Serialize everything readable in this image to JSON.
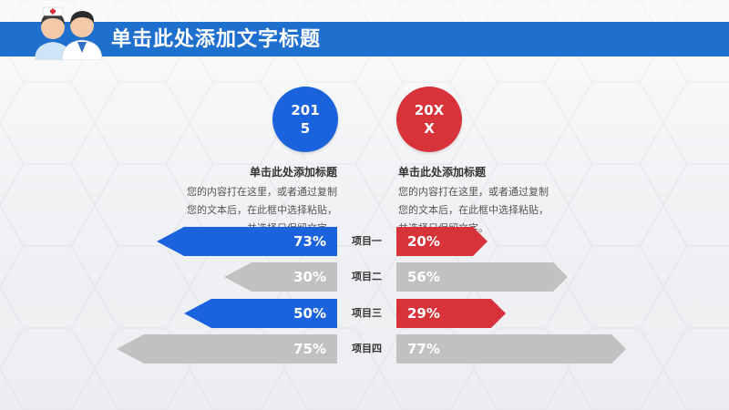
{
  "header": {
    "title": "单击此处添加文字标题"
  },
  "years": {
    "left": "2015",
    "right": "20XX"
  },
  "left_block": {
    "title": "单击此处添加标题",
    "body": "您的内容打在这里，或者通过复制您的文本后，在此框中选择粘贴，并选择只保留文字。"
  },
  "right_block": {
    "title": "单击此处添加标题",
    "body": "您的内容打在这里，或者通过复制您的文本后，在此框中选择粘贴，并选择只保留文字。"
  },
  "items": [
    {
      "label": "项目一",
      "left_value": "73%",
      "right_value": "20%",
      "left_color": "#1b63dc",
      "right_color": "#d8323b"
    },
    {
      "label": "项目二",
      "left_value": "30%",
      "right_value": "56%",
      "left_color": "#c1c1c1",
      "right_color": "#c1c1c1"
    },
    {
      "label": "项目三",
      "left_value": "50%",
      "right_value": "29%",
      "left_color": "#1b63dc",
      "right_color": "#d8323b"
    },
    {
      "label": "项目四",
      "left_value": "75%",
      "right_value": "77%",
      "left_color": "#c1c1c1",
      "right_color": "#c1c1c1"
    }
  ],
  "colors": {
    "accent_blue": "#1f6fce",
    "highlight_blue": "#1b63dc",
    "highlight_red": "#d8323b",
    "neutral_gray": "#c1c1c1"
  },
  "icons": {
    "logo": "doctor-nurse-icon"
  }
}
